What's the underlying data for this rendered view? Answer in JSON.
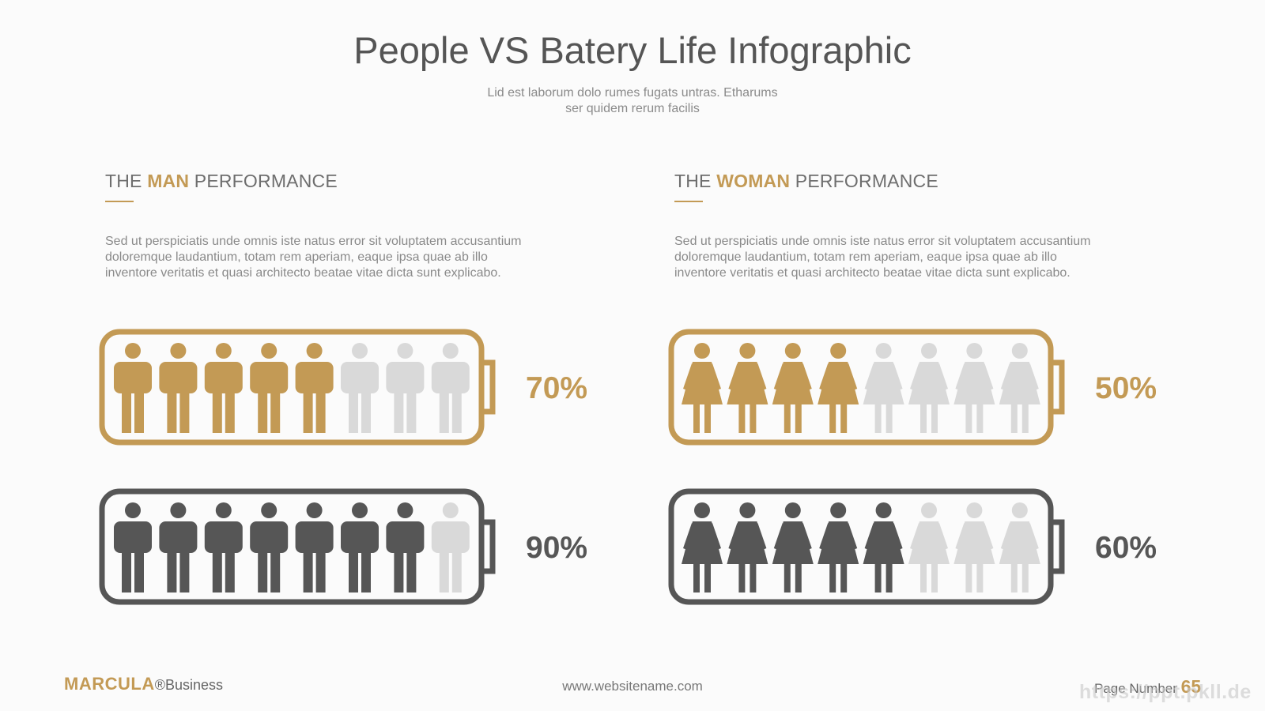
{
  "page": {
    "title": "People VS Batery Life Infographic",
    "subtitle_line1": "Lid est laborum dolo rumes fugats untras. Etharums",
    "subtitle_line2": "ser quidem rerum facilis"
  },
  "panels": [
    {
      "heading_pre": "THE ",
      "heading_em": "MAN",
      "heading_post": " PERFORMANCE",
      "body_line1": "Sed ut perspiciatis unde omnis iste natus error sit voluptatem accusantium",
      "body_line2": "doloremque laudantium, totam rem aperiam, eaque ipsa quae ab illo",
      "body_line3": "inventore veritatis et quasi architecto beatae vitae dicta sunt explicabo."
    },
    {
      "heading_pre": "THE ",
      "heading_em": "WOMAN",
      "heading_post": " PERFORMANCE",
      "body_line1": "Sed ut perspiciatis unde omnis iste natus error sit voluptatem accusantium",
      "body_line2": "doloremque laudantium, totam rem aperiam, eaque ipsa quae ab illo",
      "body_line3": "inventore veritatis et quasi architecto beatae vitae dicta sunt explicabo."
    }
  ],
  "chart_data": {
    "type": "table",
    "icons_per_battery": 8,
    "batteries": [
      {
        "group": "man",
        "value": 70,
        "label": "70%",
        "filled_icons": 5,
        "color": "#c39a55"
      },
      {
        "group": "man",
        "value": 90,
        "label": "90%",
        "filled_icons": 7,
        "color": "#565656"
      },
      {
        "group": "woman",
        "value": 50,
        "label": "50%",
        "filled_icons": 4,
        "color": "#c39a55"
      },
      {
        "group": "woman",
        "value": 60,
        "label": "60%",
        "filled_icons": 5,
        "color": "#565656"
      }
    ],
    "empty_icon_color": "#d9d9d9"
  },
  "footer": {
    "brand": "MARCULA",
    "brand_suffix": "®Business",
    "website": "www.websitename.com",
    "page_label": "Page Number ",
    "page_number": "65",
    "watermark": "https://ppt.pkll.de"
  }
}
